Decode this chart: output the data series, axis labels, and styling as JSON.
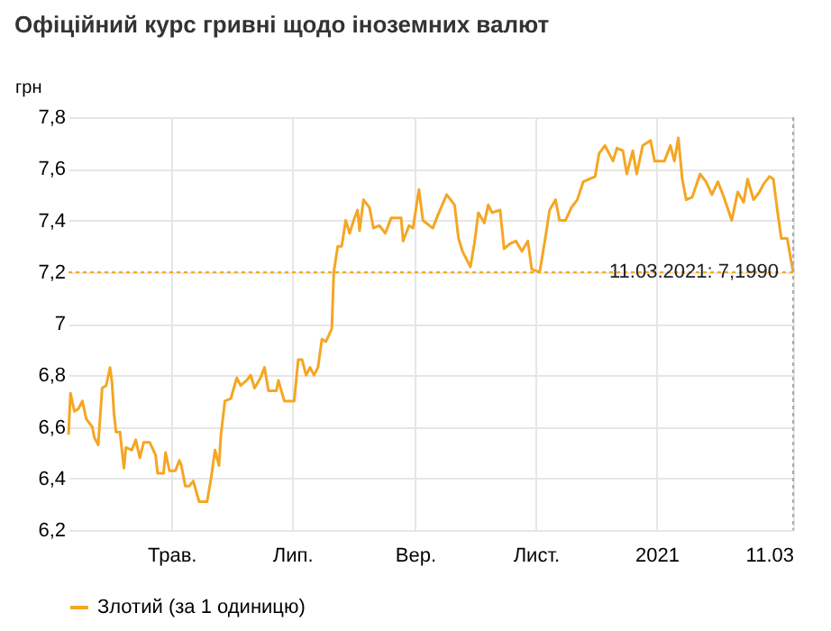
{
  "chart_data": {
    "type": "line",
    "title": "Офіційний курс гривні щодо іноземних валют",
    "ylabel": "грн",
    "x": [
      "2020-03-10",
      "2020-03-11",
      "2020-03-13",
      "2020-03-15",
      "2020-03-17",
      "2020-03-19",
      "2020-03-22",
      "2020-03-23",
      "2020-03-25",
      "2020-03-27",
      "2020-03-29",
      "2020-03-31",
      "2020-04-01",
      "2020-04-02",
      "2020-04-03",
      "2020-04-05",
      "2020-04-07",
      "2020-04-08",
      "2020-04-11",
      "2020-04-13",
      "2020-04-15",
      "2020-04-17",
      "2020-04-20",
      "2020-04-23",
      "2020-04-24",
      "2020-04-27",
      "2020-04-28",
      "2020-04-30",
      "2020-05-03",
      "2020-05-05",
      "2020-05-06",
      "2020-05-08",
      "2020-05-10",
      "2020-05-12",
      "2020-05-15",
      "2020-05-19",
      "2020-05-21",
      "2020-05-23",
      "2020-05-25",
      "2020-05-26",
      "2020-05-28",
      "2020-05-31",
      "2020-06-03",
      "2020-06-05",
      "2020-06-08",
      "2020-06-10",
      "2020-06-12",
      "2020-06-15",
      "2020-06-17",
      "2020-06-19",
      "2020-06-23",
      "2020-06-24",
      "2020-06-27",
      "2020-07-02",
      "2020-07-04",
      "2020-07-06",
      "2020-07-08",
      "2020-07-10",
      "2020-07-12",
      "2020-07-14",
      "2020-07-16",
      "2020-07-18",
      "2020-07-21",
      "2020-07-22",
      "2020-07-24",
      "2020-07-26",
      "2020-07-28",
      "2020-07-30",
      "2020-08-01",
      "2020-08-03",
      "2020-08-04",
      "2020-08-06",
      "2020-08-09",
      "2020-08-11",
      "2020-08-14",
      "2020-08-17",
      "2020-08-20",
      "2020-08-25",
      "2020-08-26",
      "2020-08-29",
      "2020-08-31",
      "2020-09-02",
      "2020-09-03",
      "2020-09-05",
      "2020-09-10",
      "2020-09-12",
      "2020-09-17",
      "2020-09-21",
      "2020-09-23",
      "2020-09-25",
      "2020-09-29",
      "2020-10-01",
      "2020-10-03",
      "2020-10-06",
      "2020-10-08",
      "2020-10-10",
      "2020-10-14",
      "2020-10-16",
      "2020-10-19",
      "2020-10-22",
      "2020-10-25",
      "2020-10-28",
      "2020-10-30",
      "2020-11-03",
      "2020-11-06",
      "2020-11-08",
      "2020-11-11",
      "2020-11-13",
      "2020-11-16",
      "2020-11-19",
      "2020-11-22",
      "2020-11-25",
      "2020-11-28",
      "2020-12-01",
      "2020-12-03",
      "2020-12-06",
      "2020-12-10",
      "2020-12-12",
      "2020-12-15",
      "2020-12-17",
      "2020-12-20",
      "2020-12-22",
      "2020-12-25",
      "2020-12-29",
      "2020-12-31",
      "2021-01-05",
      "2021-01-08",
      "2021-01-10",
      "2021-01-12",
      "2021-01-14",
      "2021-01-16",
      "2021-01-19",
      "2021-01-23",
      "2021-01-26",
      "2021-01-29",
      "2021-02-01",
      "2021-02-04",
      "2021-02-08",
      "2021-02-11",
      "2021-02-14",
      "2021-02-16",
      "2021-02-19",
      "2021-02-22",
      "2021-02-24",
      "2021-02-27",
      "2021-03-01",
      "2021-03-03",
      "2021-03-05",
      "2021-03-08",
      "2021-03-11"
    ],
    "series": [
      {
        "name": "Злотий (за 1 одиницю)",
        "color": "#f5a623",
        "values": [
          6.57,
          6.73,
          6.66,
          6.67,
          6.7,
          6.63,
          6.6,
          6.56,
          6.53,
          6.75,
          6.76,
          6.83,
          6.77,
          6.65,
          6.58,
          6.58,
          6.44,
          6.52,
          6.51,
          6.55,
          6.48,
          6.54,
          6.54,
          6.49,
          6.42,
          6.42,
          6.5,
          6.43,
          6.43,
          6.47,
          6.45,
          6.37,
          6.37,
          6.39,
          6.31,
          6.31,
          6.4,
          6.51,
          6.45,
          6.57,
          6.7,
          6.71,
          6.79,
          6.76,
          6.78,
          6.8,
          6.75,
          6.79,
          6.83,
          6.74,
          6.74,
          6.78,
          6.7,
          6.7,
          6.86,
          6.86,
          6.8,
          6.83,
          6.8,
          6.83,
          6.94,
          6.93,
          6.98,
          7.2,
          7.3,
          7.3,
          7.4,
          7.35,
          7.4,
          7.44,
          7.36,
          7.48,
          7.45,
          7.37,
          7.38,
          7.35,
          7.41,
          7.41,
          7.32,
          7.38,
          7.37,
          7.47,
          7.52,
          7.4,
          7.37,
          7.41,
          7.5,
          7.46,
          7.33,
          7.28,
          7.22,
          7.31,
          7.43,
          7.39,
          7.46,
          7.43,
          7.44,
          7.29,
          7.31,
          7.32,
          7.28,
          7.32,
          7.21,
          7.2,
          7.34,
          7.44,
          7.48,
          7.4,
          7.4,
          7.45,
          7.48,
          7.55,
          7.56,
          7.57,
          7.66,
          7.69,
          7.63,
          7.68,
          7.67,
          7.58,
          7.67,
          7.58,
          7.69,
          7.71,
          7.63,
          7.63,
          7.69,
          7.63,
          7.72,
          7.56,
          7.48,
          7.49,
          7.58,
          7.55,
          7.5,
          7.55,
          7.49,
          7.4,
          7.51,
          7.47,
          7.56,
          7.48,
          7.51,
          7.54,
          7.57,
          7.56,
          7.44,
          7.33,
          7.33,
          7.199
        ]
      }
    ],
    "xlim": [
      "2020-03-10",
      "2021-03-11"
    ],
    "xticks": [
      {
        "value": "2020-05-01",
        "label": "Трав."
      },
      {
        "value": "2020-07-01",
        "label": "Лип."
      },
      {
        "value": "2020-09-01",
        "label": "Вер."
      },
      {
        "value": "2020-11-01",
        "label": "Лист."
      },
      {
        "value": "2021-01-01",
        "label": "2021"
      },
      {
        "value": "2021-03-11",
        "label": "11.03"
      }
    ],
    "ylim": [
      6.2,
      7.8
    ],
    "yticks": [
      {
        "value": 6.2,
        "label": "6,2"
      },
      {
        "value": 6.4,
        "label": "6,4"
      },
      {
        "value": 6.6,
        "label": "6,6"
      },
      {
        "value": 6.8,
        "label": "6,8"
      },
      7,
      {
        "value": 7.2,
        "label": "7,2"
      },
      {
        "value": 7.4,
        "label": "7,4"
      },
      {
        "value": 7.6,
        "label": "7,6"
      },
      {
        "value": 7.8,
        "label": "7,8"
      }
    ],
    "ref_lines": [
      {
        "axis": "y",
        "value": 7.199,
        "label": "11.03.2021: 7,1990",
        "color": "#f5a623",
        "line_style": "dotted"
      },
      {
        "axis": "x",
        "value": "2021-03-11",
        "label": null,
        "color": "#aaaaaa",
        "line_style": "dotted"
      }
    ],
    "grid": true,
    "legend": "bottom"
  }
}
